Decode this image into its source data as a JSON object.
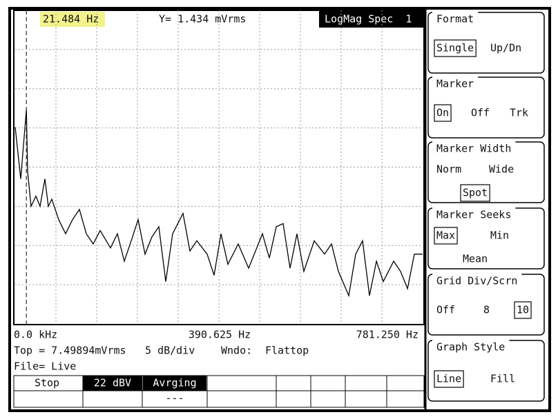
{
  "header": {
    "marker": {
      "x": 21.484,
      "label": "21.484 Hz"
    },
    "y_readout": "Y= 1.434 mVrms",
    "mode": "LogMag Spec  1"
  },
  "x_labels": [
    "0.0 kHz",
    "390.625 Hz",
    "781.250 Hz"
  ],
  "status": {
    "top": "Top = 7.49894mVrms",
    "scale": "5 dB/div",
    "window_label": "Wndo:",
    "window": "Flattop",
    "file": "File= Live"
  },
  "softkeys": [
    "Stop",
    "22 dBV",
    "Avrging"
  ],
  "softkey_sub": "---",
  "trace": {
    "type": "line",
    "xlim": [
      0,
      781.25
    ],
    "ylim": [
      -40,
      0
    ],
    "x": [
      0,
      10.6,
      21.5,
      23.8,
      30.5,
      39.7,
      47.7,
      57.0,
      63.6,
      70.2,
      83.4,
      96.7,
      109.9,
      123.2,
      136.4,
      149.6,
      162.9,
      182.7,
      196.0,
      209.2,
      222.5,
      235.7,
      249.0,
      262.2,
      275.4,
      288.7,
      301.9,
      321.8,
      335.0,
      348.3,
      368.1,
      381.4,
      394.6,
      407.9,
      427.7,
      447.6,
      474.1,
      487.3,
      500.5,
      513.8,
      527.0,
      540.3,
      553.5,
      573.4,
      593.2,
      606.5,
      619.7,
      639.6,
      652.8,
      666.1,
      679.3,
      692.6,
      705.8,
      725.7,
      738.9,
      752.2,
      765.4,
      781.25
    ],
    "values": [
      -14.9,
      -21.5,
      -12.7,
      -20.6,
      -25.0,
      -23.7,
      -25.0,
      -21.5,
      -25.0,
      -24.1,
      -26.7,
      -28.5,
      -26.7,
      -25.4,
      -28.5,
      -29.8,
      -28.1,
      -30.3,
      -28.5,
      -32.0,
      -29.4,
      -26.7,
      -31.1,
      -28.9,
      -27.6,
      -34.6,
      -28.5,
      -25.9,
      -30.7,
      -29.4,
      -31.1,
      -33.8,
      -28.5,
      -32.4,
      -29.8,
      -32.9,
      -28.5,
      -31.6,
      -27.6,
      -27.2,
      -32.9,
      -28.5,
      -33.3,
      -29.4,
      -31.1,
      -29.8,
      -33.3,
      -36.4,
      -31.1,
      -29.4,
      -36.4,
      -32.0,
      -34.6,
      -32.0,
      -33.3,
      -35.5,
      -31.1,
      -31.1
    ],
    "color": "#000000"
  },
  "menus": [
    {
      "title": "Format",
      "options": [
        "Single",
        "Up/Dn"
      ],
      "selected": 0
    },
    {
      "title": "Marker",
      "options": [
        "On",
        "Off",
        "Trk"
      ],
      "selected": 0
    },
    {
      "title": "Marker Width",
      "options": [
        "Norm",
        "Wide",
        "Spot"
      ],
      "selected": 2
    },
    {
      "title": "Marker Seeks",
      "options": [
        "Max",
        "Min",
        "Mean"
      ],
      "selected": 0
    },
    {
      "title": "Grid Div/Scrn",
      "options": [
        "Off",
        "8",
        "10"
      ],
      "selected": 2
    },
    {
      "title": "Graph Style",
      "options": [
        "Line",
        "Fill"
      ],
      "selected": 0
    }
  ]
}
